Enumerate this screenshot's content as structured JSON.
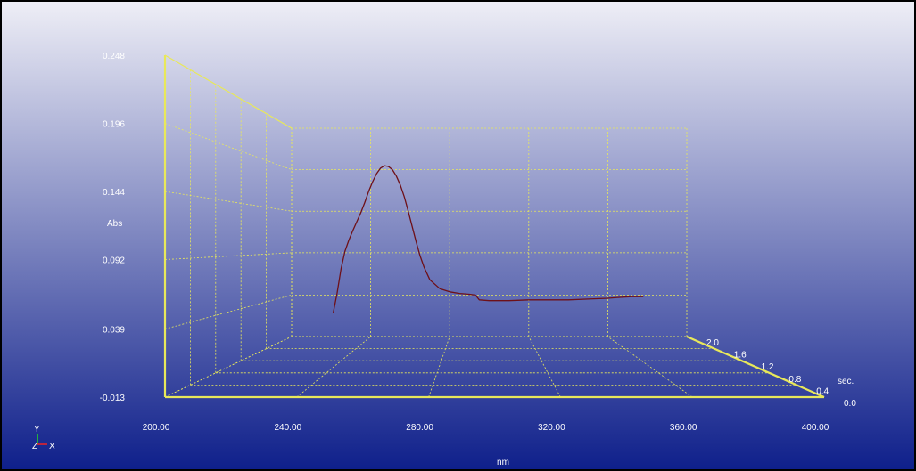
{
  "chart_data": {
    "type": "line",
    "view": "3d",
    "title": "",
    "ylabel": "Abs",
    "xlabel": "nm",
    "zlabel": "sec.",
    "xlim": [
      200,
      400
    ],
    "ylim": [
      -0.013,
      0.248
    ],
    "zlim": [
      0.0,
      2.0
    ],
    "x_ticks": [
      "200.00",
      "240.00",
      "280.00",
      "320.00",
      "360.00",
      "400.00"
    ],
    "y_ticks": [
      "-0.013",
      "0.039",
      "0.092",
      "0.144",
      "0.196",
      "0.248"
    ],
    "z_ticks": [
      "0.0",
      "0.4",
      "0.8",
      "1.2",
      "1.6",
      "2.0"
    ],
    "axis_triad": {
      "y": "Y",
      "z": "Z",
      "x": "X"
    },
    "colors": {
      "background_top": "#eeeef6",
      "background_bottom": "#0d1e8a",
      "axis": "#e8e85a",
      "grid": "#e8e85a",
      "curve": "#6e1018",
      "triad_y": "#22dd22",
      "triad_x": "#ee2222",
      "triad_z": "#ffff55"
    },
    "series": [
      {
        "sec": 2.0,
        "x": [
          221,
          223,
          225,
          227,
          229,
          231,
          233,
          235,
          237,
          239,
          241,
          243,
          245,
          247,
          249,
          251,
          253,
          255,
          257,
          259,
          261,
          263,
          265,
          267,
          270,
          275,
          280,
          285,
          290,
          293,
          295,
          300,
          310,
          320,
          330,
          340,
          350,
          360,
          365,
          372,
          378
        ],
        "y": [
          0.016,
          0.041,
          0.072,
          0.094,
          0.108,
          0.12,
          0.131,
          0.142,
          0.155,
          0.169,
          0.181,
          0.191,
          0.198,
          0.201,
          0.2,
          0.196,
          0.188,
          0.177,
          0.162,
          0.144,
          0.125,
          0.106,
          0.088,
          0.074,
          0.058,
          0.047,
          0.043,
          0.041,
          0.04,
          0.039,
          0.033,
          0.032,
          0.032,
          0.033,
          0.033,
          0.033,
          0.034,
          0.035,
          0.036,
          0.037,
          0.037
        ]
      }
    ]
  }
}
